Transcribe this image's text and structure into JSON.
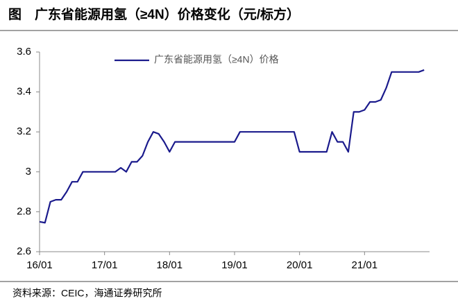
{
  "chart_data": {
    "type": "line",
    "title": "图　广东省能源用氢（≥4N）价格变化（元/标方）",
    "source": "资料来源：CEIC，海通证券研究所",
    "legend": "top",
    "x": [
      0,
      1,
      2,
      3,
      4,
      5,
      6,
      7,
      8,
      9,
      10,
      11,
      12,
      13,
      14,
      15,
      16,
      17,
      18,
      19,
      20,
      21,
      22,
      23,
      24,
      25,
      26,
      27,
      28,
      29,
      30,
      31,
      32,
      33,
      34,
      35,
      36,
      37,
      38,
      39,
      40,
      41,
      42,
      43,
      44,
      45,
      46,
      47,
      48,
      49,
      50,
      51,
      52,
      53,
      54,
      55,
      56,
      57,
      58,
      59,
      60,
      61,
      62,
      63,
      64,
      65,
      66,
      67,
      68,
      69,
      70,
      71
    ],
    "series": [
      {
        "name": "广东省能源用氢（≥4N）价格",
        "color": "#1a1a8c",
        "values": [
          2.75,
          2.745,
          2.85,
          2.86,
          2.86,
          2.9,
          2.95,
          2.95,
          3.0,
          3.0,
          3.0,
          3.0,
          3.0,
          3.0,
          3.0,
          3.02,
          3.0,
          3.05,
          3.05,
          3.08,
          3.15,
          3.2,
          3.19,
          3.15,
          3.1,
          3.15,
          3.15,
          3.15,
          3.15,
          3.15,
          3.15,
          3.15,
          3.15,
          3.15,
          3.15,
          3.15,
          3.15,
          3.2,
          3.2,
          3.2,
          3.2,
          3.2,
          3.2,
          3.2,
          3.2,
          3.2,
          3.2,
          3.2,
          3.1,
          3.1,
          3.1,
          3.1,
          3.1,
          3.1,
          3.2,
          3.15,
          3.15,
          3.1,
          3.3,
          3.3,
          3.31,
          3.35,
          3.35,
          3.36,
          3.42,
          3.5,
          3.5,
          3.5,
          3.5,
          3.5,
          3.5,
          3.51
        ]
      }
    ],
    "xlim": [
      0,
      72
    ],
    "xticks": [
      {
        "value": 0,
        "label": "16/01"
      },
      {
        "value": 12,
        "label": "17/01"
      },
      {
        "value": 24,
        "label": "18/01"
      },
      {
        "value": 36,
        "label": "19/01"
      },
      {
        "value": 48,
        "label": "20/01"
      },
      {
        "value": 60,
        "label": "21/01"
      }
    ],
    "ylim": [
      2.6,
      3.6
    ],
    "yticks": [
      2.6,
      2.8,
      3,
      3.2,
      3.4,
      3.6
    ],
    "grid": false
  }
}
